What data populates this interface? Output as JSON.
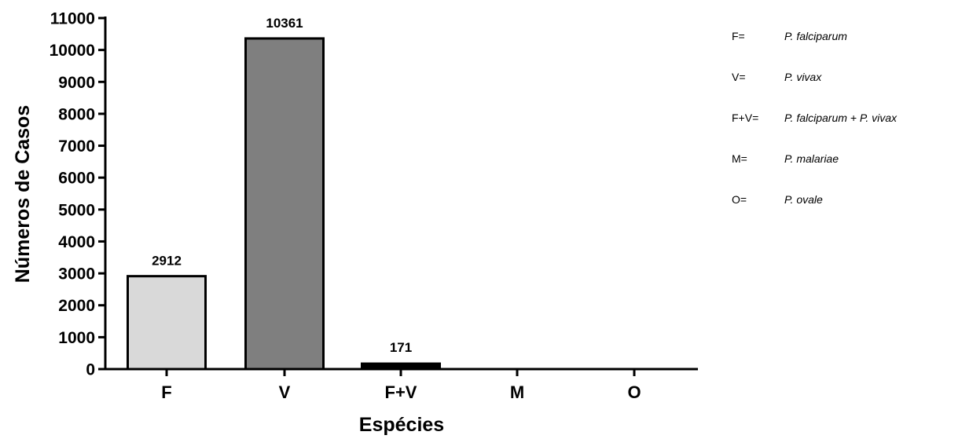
{
  "chart_data": {
    "type": "bar",
    "categories": [
      "F",
      "V",
      "F+V",
      "M",
      "O"
    ],
    "values": [
      2912,
      10361,
      171,
      0,
      0
    ],
    "data_labels": [
      "2912",
      "10361",
      "171",
      "",
      ""
    ],
    "bar_colors": [
      "#d9d9d9",
      "#7f7f7f",
      "#000000",
      "#000000",
      "#000000"
    ],
    "xlabel": "Espécies",
    "ylabel": "Números de Casos",
    "ylim": [
      0,
      11000
    ],
    "yticks": [
      0,
      1000,
      2000,
      3000,
      4000,
      5000,
      6000,
      7000,
      8000,
      9000,
      10000,
      11000
    ],
    "grid": false,
    "legend_position": "right",
    "legend": [
      {
        "key": "F=",
        "value": "P. falciparum"
      },
      {
        "key": "V=",
        "value": "P. vivax"
      },
      {
        "key": "F+V=",
        "value": "P. falciparum + P. vivax"
      },
      {
        "key": "M=",
        "value": "P. malariae"
      },
      {
        "key": "O=",
        "value": "P. ovale"
      }
    ]
  }
}
